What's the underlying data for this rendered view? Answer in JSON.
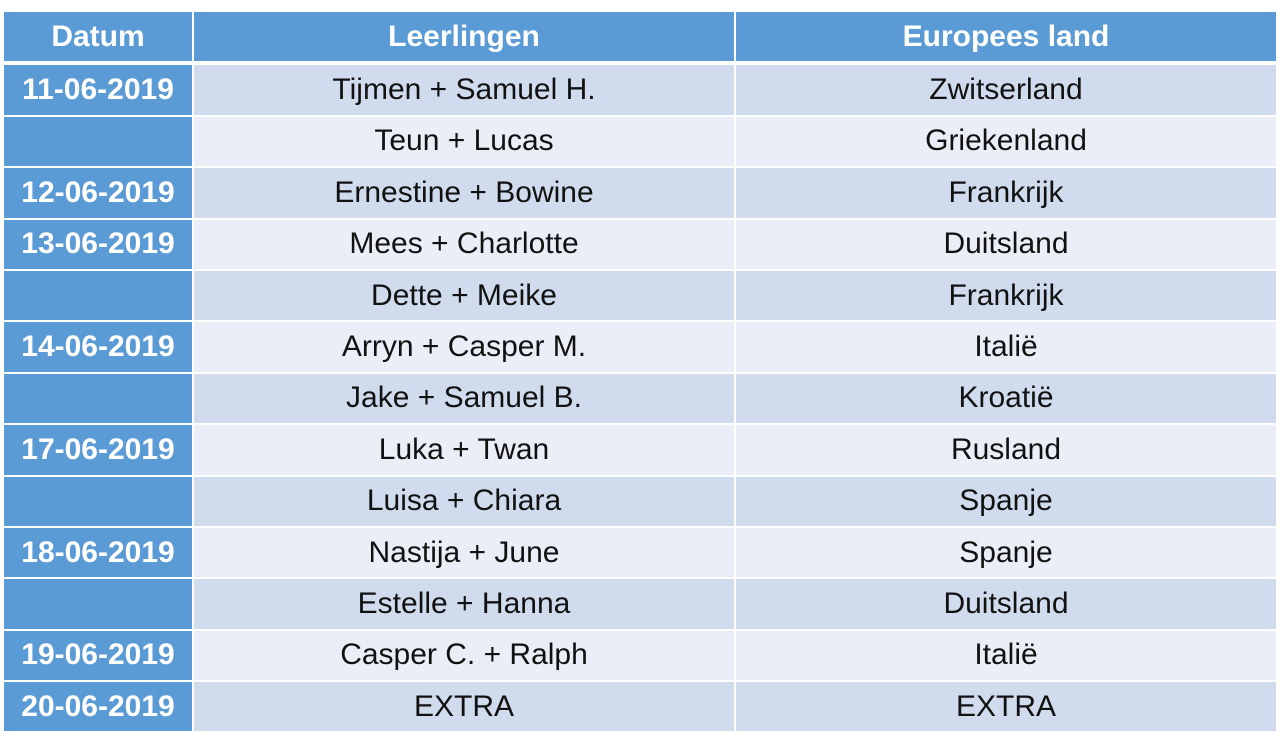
{
  "table": {
    "headers": [
      "Datum",
      "Leerlingen",
      "Europees land"
    ],
    "rows": [
      {
        "date": "11-06-2019",
        "students": "Tijmen + Samuel H.",
        "country": "Zwitserland"
      },
      {
        "date": "",
        "students": "Teun + Lucas",
        "country": "Griekenland"
      },
      {
        "date": "12-06-2019",
        "students": "Ernestine + Bowine",
        "country": "Frankrijk"
      },
      {
        "date": "13-06-2019",
        "students": "Mees + Charlotte",
        "country": "Duitsland"
      },
      {
        "date": "",
        "students": "Dette + Meike",
        "country": "Frankrijk"
      },
      {
        "date": "14-06-2019",
        "students": "Arryn + Casper M.",
        "country": "Italië"
      },
      {
        "date": "",
        "students": "Jake + Samuel B.",
        "country": "Kroatië"
      },
      {
        "date": "17-06-2019",
        "students": "Luka + Twan",
        "country": "Rusland"
      },
      {
        "date": "",
        "students": "Luisa + Chiara",
        "country": "Spanje"
      },
      {
        "date": "18-06-2019",
        "students": "Nastija + June",
        "country": "Spanje"
      },
      {
        "date": "",
        "students": "Estelle + Hanna",
        "country": "Duitsland"
      },
      {
        "date": "19-06-2019",
        "students": "Casper C. + Ralph",
        "country": "Italië"
      },
      {
        "date": "20-06-2019",
        "students": "EXTRA",
        "country": "EXTRA"
      }
    ]
  },
  "colors": {
    "header_bg": "#5b9bd5",
    "row_odd_bg": "#d0dcee",
    "row_even_bg": "#e9eef7",
    "header_text": "#ffffff"
  }
}
